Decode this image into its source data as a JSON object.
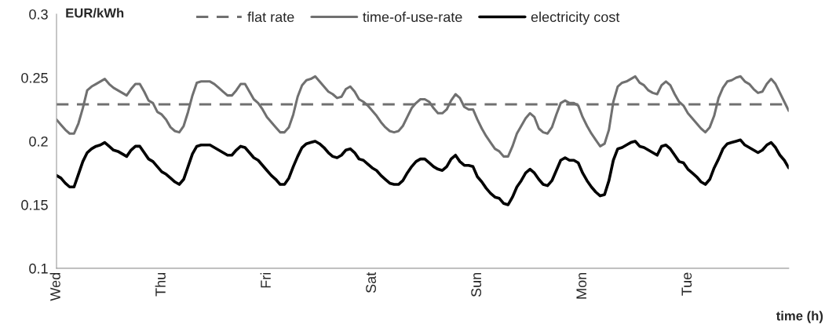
{
  "chart_data": {
    "type": "line",
    "ylabel": "EUR/kWh",
    "xlabel": "time (h)",
    "categories": [
      "Wed",
      null,
      null,
      null,
      null,
      null,
      null,
      null,
      null,
      null,
      null,
      null,
      null,
      null,
      null,
      null,
      null,
      null,
      null,
      null,
      null,
      null,
      null,
      null,
      "Thu",
      null,
      null,
      null,
      null,
      null,
      null,
      null,
      null,
      null,
      null,
      null,
      null,
      null,
      null,
      null,
      null,
      null,
      null,
      null,
      null,
      null,
      null,
      null,
      "Fri",
      null,
      null,
      null,
      null,
      null,
      null,
      null,
      null,
      null,
      null,
      null,
      null,
      null,
      null,
      null,
      null,
      null,
      null,
      null,
      null,
      null,
      null,
      null,
      "Sat",
      null,
      null,
      null,
      null,
      null,
      null,
      null,
      null,
      null,
      null,
      null,
      null,
      null,
      null,
      null,
      null,
      null,
      null,
      null,
      null,
      null,
      null,
      null,
      "Sun",
      null,
      null,
      null,
      null,
      null,
      null,
      null,
      null,
      null,
      null,
      null,
      null,
      null,
      null,
      null,
      null,
      null,
      null,
      null,
      null,
      null,
      null,
      null,
      "Mon",
      null,
      null,
      null,
      null,
      null,
      null,
      null,
      null,
      null,
      null,
      null,
      null,
      null,
      null,
      null,
      null,
      null,
      null,
      null,
      null,
      null,
      null,
      null,
      "Tue",
      null,
      null,
      null,
      null,
      null,
      null,
      null,
      null,
      null,
      null,
      null,
      null,
      null,
      null,
      null,
      null,
      null,
      null,
      null,
      null,
      null,
      null,
      null
    ],
    "ylim": [
      0.1,
      0.3
    ],
    "yticks": [
      0.1,
      0.15,
      0.2,
      0.25,
      0.3
    ],
    "legend": "top",
    "series": [
      {
        "name": "flat rate",
        "color": "#707070",
        "line_style": "dashed",
        "values": [
          0.229,
          0.229,
          0.229,
          0.229,
          0.229,
          0.229,
          0.229,
          0.229,
          0.229,
          0.229,
          0.229,
          0.229,
          0.229,
          0.229,
          0.229,
          0.229,
          0.229,
          0.229,
          0.229,
          0.229,
          0.229,
          0.229,
          0.229,
          0.229,
          0.229,
          0.229,
          0.229,
          0.229,
          0.229,
          0.229,
          0.229,
          0.229,
          0.229,
          0.229,
          0.229,
          0.229,
          0.229,
          0.229,
          0.229,
          0.229,
          0.229,
          0.229,
          0.229,
          0.229,
          0.229,
          0.229,
          0.229,
          0.229,
          0.229,
          0.229,
          0.229,
          0.229,
          0.229,
          0.229,
          0.229,
          0.229,
          0.229,
          0.229,
          0.229,
          0.229,
          0.229,
          0.229,
          0.229,
          0.229,
          0.229,
          0.229,
          0.229,
          0.229,
          0.229,
          0.229,
          0.229,
          0.229,
          0.229,
          0.229,
          0.229,
          0.229,
          0.229,
          0.229,
          0.229,
          0.229,
          0.229,
          0.229,
          0.229,
          0.229,
          0.229,
          0.229,
          0.229,
          0.229,
          0.229,
          0.229,
          0.229,
          0.229,
          0.229,
          0.229,
          0.229,
          0.229,
          0.229,
          0.229,
          0.229,
          0.229,
          0.229,
          0.229,
          0.229,
          0.229,
          0.229,
          0.229,
          0.229,
          0.229,
          0.229,
          0.229,
          0.229,
          0.229,
          0.229,
          0.229,
          0.229,
          0.229,
          0.229,
          0.229,
          0.229,
          0.229,
          0.229,
          0.229,
          0.229,
          0.229,
          0.229,
          0.229,
          0.229,
          0.229,
          0.229,
          0.229,
          0.229,
          0.229,
          0.229,
          0.229,
          0.229,
          0.229,
          0.229,
          0.229,
          0.229,
          0.229,
          0.229,
          0.229,
          0.229,
          0.229,
          0.229,
          0.229,
          0.229,
          0.229,
          0.229,
          0.229,
          0.229,
          0.229,
          0.229,
          0.229,
          0.229,
          0.229,
          0.229,
          0.229,
          0.229,
          0.229,
          0.229,
          0.229,
          0.229,
          0.229,
          0.229,
          0.229,
          0.229,
          0.229
        ]
      },
      {
        "name": "time-of-use-rate",
        "color": "#707070",
        "line_style": "solid",
        "values": [
          0.217,
          0.213,
          0.209,
          0.206,
          0.206,
          0.214,
          0.226,
          0.24,
          0.243,
          0.245,
          0.247,
          0.249,
          0.245,
          0.242,
          0.24,
          0.238,
          0.236,
          0.241,
          0.245,
          0.245,
          0.239,
          0.232,
          0.23,
          0.223,
          0.221,
          0.217,
          0.211,
          0.208,
          0.207,
          0.212,
          0.223,
          0.236,
          0.246,
          0.247,
          0.247,
          0.247,
          0.245,
          0.242,
          0.239,
          0.236,
          0.236,
          0.24,
          0.245,
          0.245,
          0.239,
          0.233,
          0.23,
          0.225,
          0.219,
          0.215,
          0.211,
          0.207,
          0.207,
          0.211,
          0.221,
          0.235,
          0.244,
          0.248,
          0.249,
          0.251,
          0.247,
          0.243,
          0.239,
          0.237,
          0.234,
          0.235,
          0.241,
          0.243,
          0.239,
          0.233,
          0.231,
          0.228,
          0.224,
          0.22,
          0.215,
          0.211,
          0.208,
          0.207,
          0.208,
          0.212,
          0.219,
          0.226,
          0.23,
          0.233,
          0.233,
          0.231,
          0.226,
          0.222,
          0.222,
          0.225,
          0.232,
          0.237,
          0.234,
          0.227,
          0.225,
          0.225,
          0.217,
          0.21,
          0.204,
          0.199,
          0.194,
          0.192,
          0.188,
          0.188,
          0.196,
          0.206,
          0.212,
          0.218,
          0.222,
          0.219,
          0.21,
          0.207,
          0.206,
          0.211,
          0.221,
          0.23,
          0.232,
          0.23,
          0.23,
          0.228,
          0.219,
          0.212,
          0.206,
          0.201,
          0.196,
          0.198,
          0.209,
          0.231,
          0.243,
          0.246,
          0.247,
          0.249,
          0.251,
          0.246,
          0.244,
          0.24,
          0.238,
          0.237,
          0.244,
          0.247,
          0.244,
          0.237,
          0.231,
          0.228,
          0.222,
          0.218,
          0.214,
          0.21,
          0.207,
          0.211,
          0.22,
          0.234,
          0.242,
          0.247,
          0.248,
          0.25,
          0.251,
          0.247,
          0.245,
          0.241,
          0.238,
          0.239,
          0.245,
          0.249,
          0.245,
          0.238,
          0.231,
          0.224
        ]
      },
      {
        "name": "electricity cost",
        "color": "#000000",
        "line_style": "solid",
        "values": [
          0.173,
          0.171,
          0.167,
          0.164,
          0.164,
          0.174,
          0.184,
          0.191,
          0.194,
          0.196,
          0.197,
          0.199,
          0.196,
          0.193,
          0.192,
          0.19,
          0.188,
          0.193,
          0.196,
          0.196,
          0.191,
          0.186,
          0.184,
          0.18,
          0.176,
          0.174,
          0.171,
          0.168,
          0.166,
          0.17,
          0.18,
          0.19,
          0.196,
          0.197,
          0.197,
          0.197,
          0.195,
          0.193,
          0.191,
          0.189,
          0.189,
          0.193,
          0.196,
          0.195,
          0.191,
          0.187,
          0.185,
          0.181,
          0.177,
          0.173,
          0.17,
          0.166,
          0.166,
          0.171,
          0.18,
          0.188,
          0.195,
          0.198,
          0.199,
          0.2,
          0.198,
          0.195,
          0.191,
          0.188,
          0.187,
          0.189,
          0.193,
          0.194,
          0.191,
          0.186,
          0.185,
          0.182,
          0.179,
          0.177,
          0.173,
          0.17,
          0.167,
          0.166,
          0.166,
          0.169,
          0.175,
          0.18,
          0.184,
          0.186,
          0.186,
          0.183,
          0.18,
          0.178,
          0.177,
          0.18,
          0.186,
          0.189,
          0.184,
          0.181,
          0.181,
          0.18,
          0.172,
          0.168,
          0.163,
          0.159,
          0.156,
          0.155,
          0.151,
          0.15,
          0.156,
          0.164,
          0.169,
          0.175,
          0.178,
          0.175,
          0.17,
          0.166,
          0.165,
          0.169,
          0.177,
          0.185,
          0.187,
          0.185,
          0.185,
          0.183,
          0.175,
          0.169,
          0.164,
          0.16,
          0.157,
          0.158,
          0.169,
          0.185,
          0.194,
          0.195,
          0.197,
          0.199,
          0.2,
          0.196,
          0.195,
          0.193,
          0.191,
          0.189,
          0.196,
          0.197,
          0.194,
          0.189,
          0.184,
          0.183,
          0.178,
          0.175,
          0.172,
          0.168,
          0.166,
          0.17,
          0.179,
          0.186,
          0.194,
          0.198,
          0.199,
          0.2,
          0.201,
          0.197,
          0.195,
          0.193,
          0.191,
          0.193,
          0.197,
          0.199,
          0.195,
          0.189,
          0.185,
          0.179
        ]
      }
    ]
  }
}
